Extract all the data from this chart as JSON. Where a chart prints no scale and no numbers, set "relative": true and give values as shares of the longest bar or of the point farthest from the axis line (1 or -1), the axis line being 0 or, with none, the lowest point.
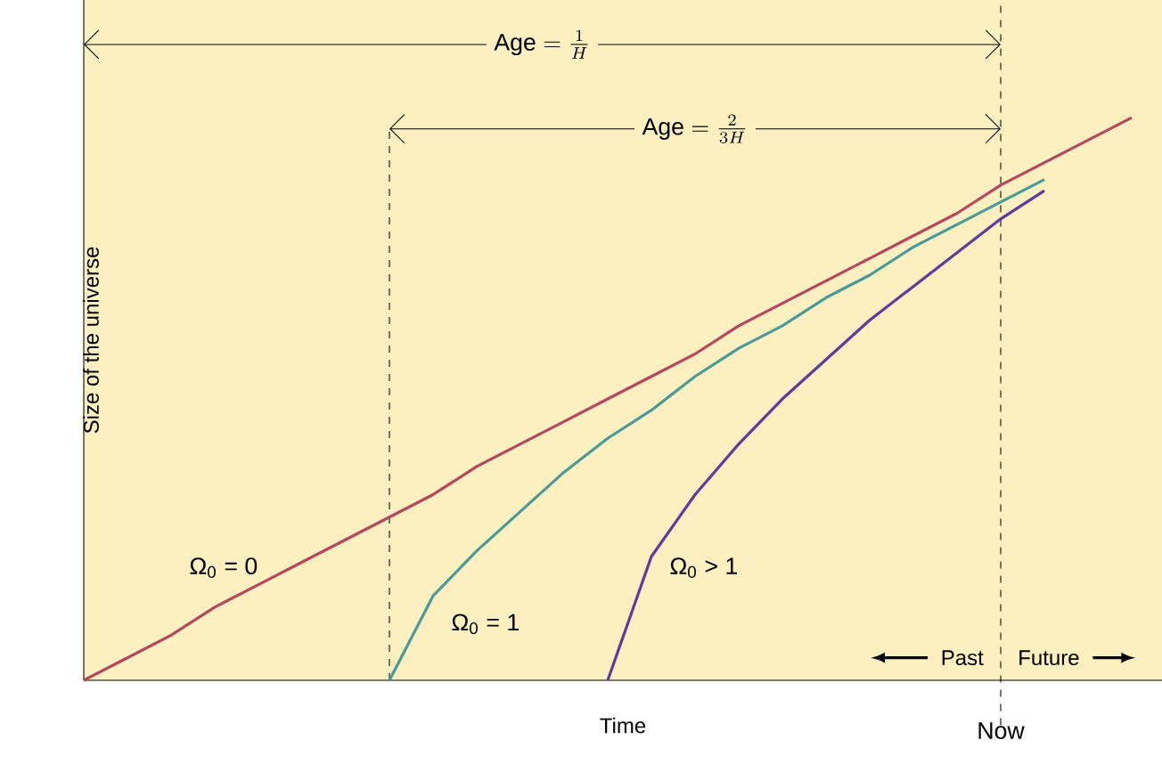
{
  "chart_data": {
    "type": "line",
    "relative": true,
    "xlabel": "Time",
    "ylabel": "Size of the universe",
    "marker": "none",
    "categories": [
      null,
      null,
      null,
      null,
      null,
      null,
      null,
      null,
      null,
      null,
      null,
      null,
      null,
      null,
      null,
      null,
      null,
      null,
      null,
      null,
      null,
      null,
      null,
      null,
      null
    ],
    "series": [
      {
        "name": "Ω$_{0}$ = 0",
        "color": "#b5475f",
        "values": [
          0,
          0.04,
          0.08,
          0.13,
          0.17,
          0.21,
          0.25,
          0.29,
          0.33,
          0.38,
          0.42,
          0.46,
          0.5,
          0.54,
          0.58,
          0.63,
          0.67,
          0.71,
          0.75,
          0.79,
          0.83,
          0.88,
          0.92,
          0.96,
          1
        ]
      },
      {
        "name": "Ω$_{0}$ = 1",
        "color": "#4a9a9a",
        "values": [
          null,
          null,
          null,
          null,
          null,
          null,
          null,
          0,
          0.15,
          0.23,
          0.3,
          0.37,
          0.43,
          0.48,
          0.54,
          0.59,
          0.63,
          0.68,
          0.72,
          0.77,
          0.81,
          0.85,
          0.89,
          null,
          null
        ]
      },
      {
        "name": "Ω$_{0}$ > 1",
        "color": "#5b3c9c",
        "values": [
          null,
          null,
          null,
          null,
          null,
          null,
          null,
          null,
          null,
          null,
          null,
          null,
          0,
          0.22,
          0.33,
          0.42,
          0.5,
          0.57,
          0.64,
          0.7,
          0.76,
          0.82,
          0.87,
          null,
          null
        ]
      }
    ],
    "annotations": [
      "\\mathrm{Age} = \\frac{1}{H}",
      "\\mathrm{Age} = \\frac{2}{3H}",
      "Past",
      "Future",
      "Now"
    ]
  }
}
